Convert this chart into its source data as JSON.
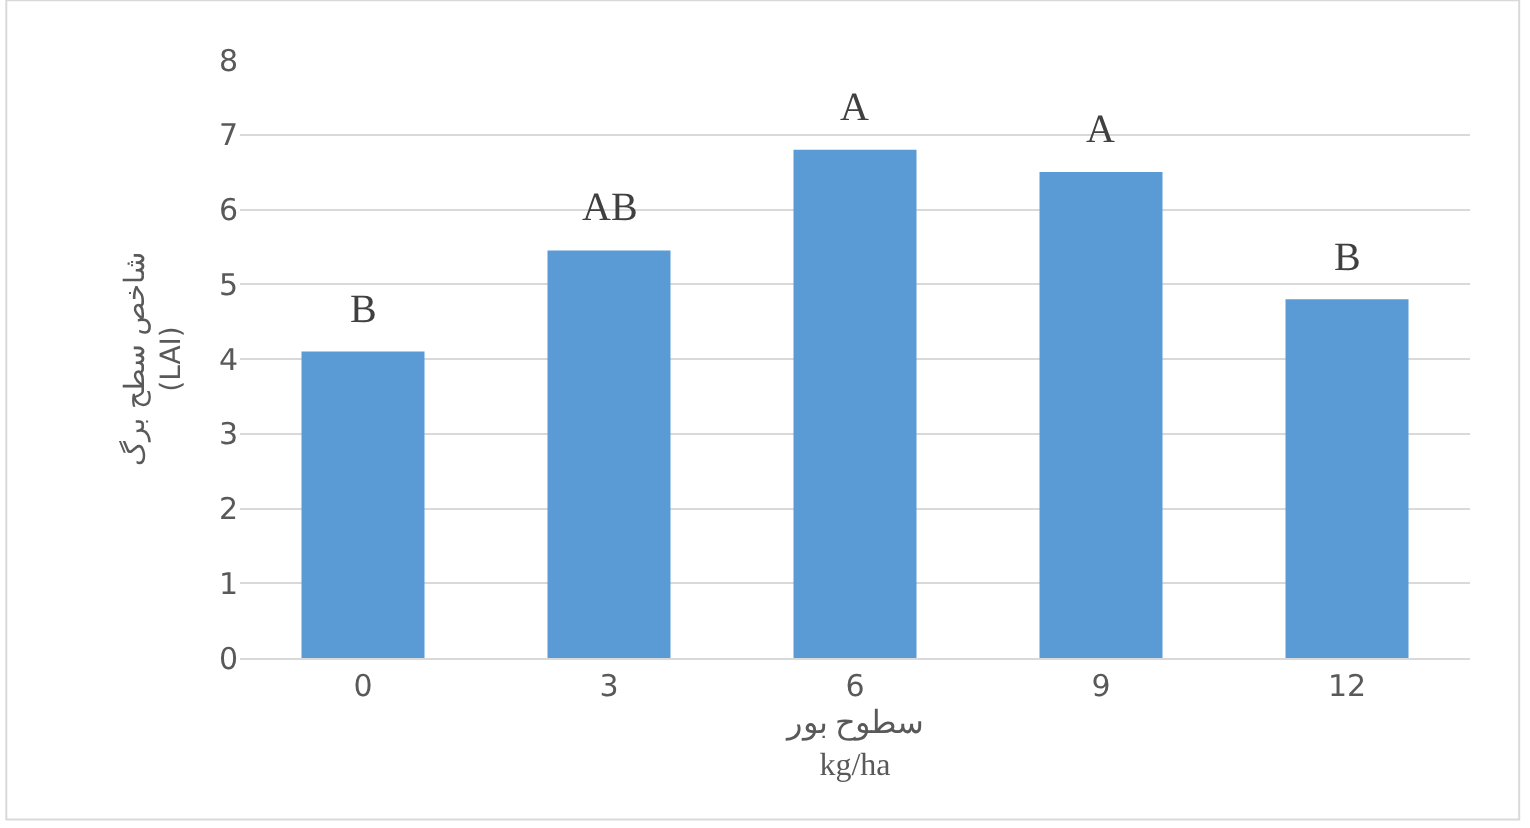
{
  "chart_data": {
    "type": "bar",
    "xlabel": "سطوح بور\nkg/ha",
    "ylabel": "شاخص سطح برگ\n(LAI)",
    "categories": [
      "0",
      "3",
      "6",
      "9",
      "12"
    ],
    "values": [
      4.1,
      5.45,
      6.8,
      6.5,
      4.8
    ],
    "color": "#5b9bd5",
    "ylim": [
      0,
      8
    ],
    "yticks": [
      0,
      1,
      2,
      3,
      4,
      5,
      6,
      7,
      8
    ],
    "grid": "y",
    "annotations": [
      {
        "text": "B",
        "x": "0",
        "y": 4.1
      },
      {
        "text": "AB",
        "x": "3",
        "y": 5.45
      },
      {
        "text": "A",
        "x": "6",
        "y": 6.8
      },
      {
        "text": "A",
        "x": "9",
        "y": 6.5
      },
      {
        "text": "B",
        "x": "12",
        "y": 4.8
      }
    ]
  }
}
